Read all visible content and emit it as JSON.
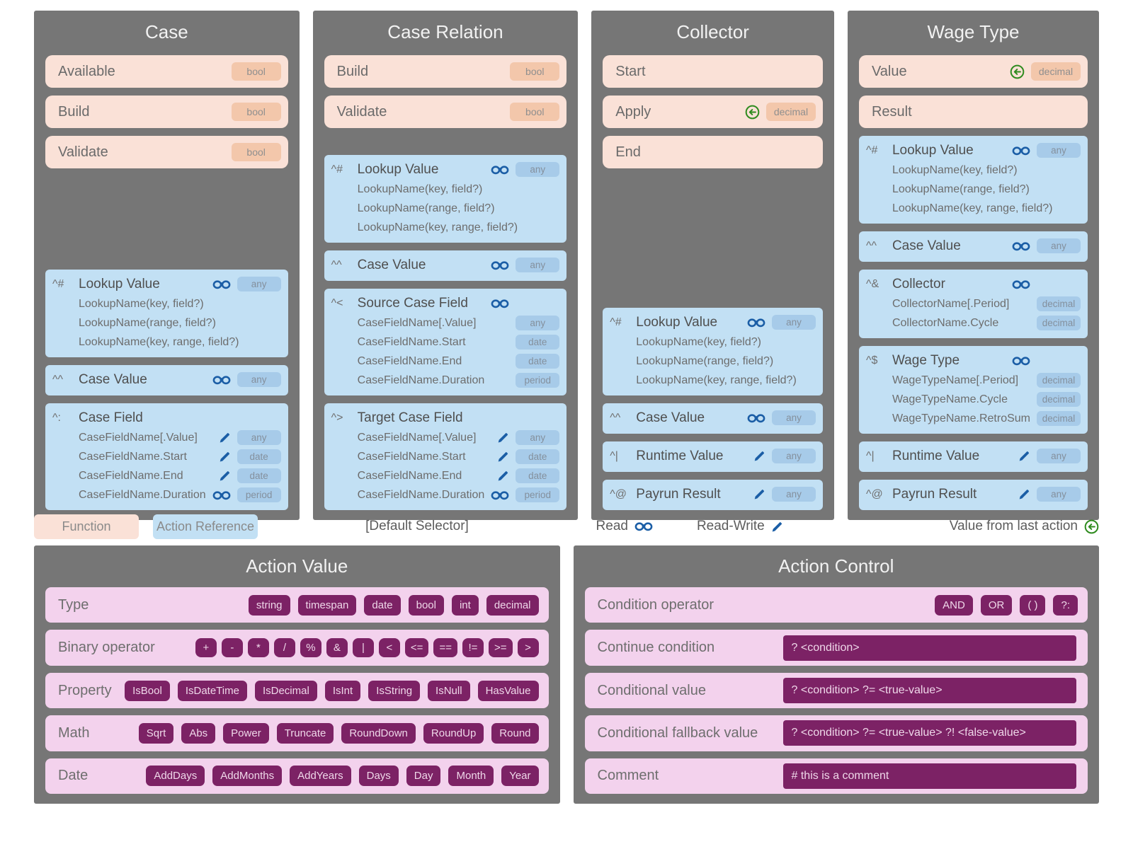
{
  "colors": {
    "panel_bg": "#767676",
    "function_bg": "#fae1d7",
    "function_badge_bg": "#f3c7ab",
    "action_ref_bg": "#c2e0f4",
    "action_ref_badge_bg": "#a7cbe9",
    "icon_blue": "#1b5ea6",
    "icon_green": "#2f8b1f",
    "value_row_bg": "#f3d2ed",
    "value_chip_bg": "#7c2265"
  },
  "panels": [
    {
      "title": "Case",
      "functions": [
        {
          "label": "Available",
          "badge": "bool"
        },
        {
          "label": "Build",
          "badge": "bool"
        },
        {
          "label": "Validate",
          "badge": "bool"
        }
      ],
      "spacer": true,
      "blocks": [
        {
          "prefix": "^#",
          "title": "Lookup Value",
          "icon": "read",
          "badge": "any",
          "lines": [
            {
              "text": "LookupName(key, field?)"
            },
            {
              "text": "LookupName(range, field?)"
            },
            {
              "text": "LookupName(key, range, field?)"
            }
          ]
        },
        {
          "prefix": "^^",
          "title": "Case Value",
          "icon": "read",
          "badge": "any",
          "lines": []
        },
        {
          "prefix": "^:",
          "title": "Case Field",
          "lines": [
            {
              "text": "CaseFieldName[.Value]",
              "icon": "write",
              "badge": "any"
            },
            {
              "text": "CaseFieldName.Start",
              "icon": "write",
              "badge": "date"
            },
            {
              "text": "CaseFieldName.End",
              "icon": "write",
              "badge": "date"
            },
            {
              "text": "CaseFieldName.Duration",
              "icon": "read",
              "badge": "period"
            }
          ]
        }
      ]
    },
    {
      "title": "Case Relation",
      "functions": [
        {
          "label": "Build",
          "badge": "bool"
        },
        {
          "label": "Validate",
          "badge": "bool"
        }
      ],
      "spacer": true,
      "blocks": [
        {
          "prefix": "^#",
          "title": "Lookup Value",
          "icon": "read",
          "badge": "any",
          "lines": [
            {
              "text": "LookupName(key, field?)"
            },
            {
              "text": "LookupName(range, field?)"
            },
            {
              "text": "LookupName(key, range, field?)"
            }
          ]
        },
        {
          "prefix": "^^",
          "title": "Case Value",
          "icon": "read",
          "badge": "any",
          "lines": []
        },
        {
          "prefix": "^<",
          "title": "Source Case Field",
          "icon": "read",
          "lines": [
            {
              "text": "CaseFieldName[.Value]",
              "badge": "any"
            },
            {
              "text": "CaseFieldName.Start",
              "badge": "date"
            },
            {
              "text": "CaseFieldName.End",
              "badge": "date"
            },
            {
              "text": "CaseFieldName.Duration",
              "badge": "period"
            }
          ]
        },
        {
          "prefix": "^>",
          "title": "Target Case Field",
          "lines": [
            {
              "text": "CaseFieldName[.Value]",
              "icon": "write",
              "badge": "any"
            },
            {
              "text": "CaseFieldName.Start",
              "icon": "write",
              "badge": "date"
            },
            {
              "text": "CaseFieldName.End",
              "icon": "write",
              "badge": "date"
            },
            {
              "text": "CaseFieldName.Duration",
              "icon": "read",
              "badge": "period"
            }
          ]
        }
      ]
    },
    {
      "title": "Collector",
      "functions": [
        {
          "label": "Start"
        },
        {
          "label": "Apply",
          "green_arrow": true,
          "badge": "decimal"
        },
        {
          "label": "End"
        }
      ],
      "spacer": true,
      "blocks": [
        {
          "prefix": "^#",
          "title": "Lookup Value",
          "icon": "read",
          "badge": "any",
          "lines": [
            {
              "text": "LookupName(key, field?)"
            },
            {
              "text": "LookupName(range, field?)"
            },
            {
              "text": "LookupName(key, range, field?)"
            }
          ]
        },
        {
          "prefix": "^^",
          "title": "Case Value",
          "icon": "read",
          "badge": "any",
          "lines": []
        },
        {
          "prefix": "^|",
          "title": "Runtime Value",
          "icon": "write",
          "badge": "any",
          "lines": []
        },
        {
          "prefix": "^@",
          "title": "Payrun Result",
          "icon": "write",
          "badge": "any",
          "lines": []
        }
      ]
    },
    {
      "title": "Wage Type",
      "functions": [
        {
          "label": "Value",
          "green_arrow": true,
          "badge": "decimal"
        },
        {
          "label": "Result"
        }
      ],
      "spacer": false,
      "blocks": [
        {
          "prefix": "^#",
          "title": "Lookup Value",
          "icon": "read",
          "badge": "any",
          "lines": [
            {
              "text": "LookupName(key, field?)"
            },
            {
              "text": "LookupName(range, field?)"
            },
            {
              "text": "LookupName(key, range, field?)"
            }
          ]
        },
        {
          "prefix": "^^",
          "title": "Case Value",
          "icon": "read",
          "badge": "any",
          "lines": []
        },
        {
          "prefix": "^&",
          "title": "Collector",
          "icon": "read",
          "lines": [
            {
              "text": "CollectorName[.Period]",
              "badge": "decimal"
            },
            {
              "text": "CollectorName.Cycle",
              "badge": "decimal"
            }
          ]
        },
        {
          "prefix": "^$",
          "title": "Wage Type",
          "icon": "read",
          "lines": [
            {
              "text": "WageTypeName[.Period]",
              "badge": "decimal"
            },
            {
              "text": "WageTypeName.Cycle",
              "badge": "decimal"
            },
            {
              "text": "WageTypeName.RetroSum",
              "badge": "decimal"
            }
          ]
        },
        {
          "prefix": "^|",
          "title": "Runtime Value",
          "icon": "write",
          "badge": "any",
          "lines": []
        },
        {
          "prefix": "^@",
          "title": "Payrun Result",
          "icon": "write",
          "badge": "any",
          "lines": []
        }
      ]
    }
  ],
  "legend": {
    "function_label": "Function",
    "action_reference_label": "Action Reference",
    "default_selector_label": "[Default Selector]",
    "read_label": "Read",
    "read_write_label": "Read-Write",
    "last_action_label": "Value from last action"
  },
  "action_value": {
    "title": "Action Value",
    "rows": [
      {
        "label": "Type",
        "chips": [
          "string",
          "timespan",
          "date",
          "bool",
          "int",
          "decimal"
        ]
      },
      {
        "label": "Binary operator",
        "small": true,
        "chips": [
          "+",
          "-",
          "*",
          "/",
          "%",
          "&",
          "|",
          "<",
          "<=",
          "==",
          "!=",
          ">=",
          ">"
        ]
      },
      {
        "label": "Property",
        "chips": [
          "IsBool",
          "IsDateTime",
          "IsDecimal",
          "IsInt",
          "IsString",
          "IsNull",
          "HasValue"
        ]
      },
      {
        "label": "Math",
        "chips": [
          "Sqrt",
          "Abs",
          "Power",
          "Truncate",
          "RoundDown",
          "RoundUp",
          "Round"
        ]
      },
      {
        "label": "Date",
        "chips": [
          "AddDays",
          "AddMonths",
          "AddYears",
          "Days",
          "Day",
          "Month",
          "Year"
        ]
      }
    ]
  },
  "action_control": {
    "title": "Action Control",
    "rows": [
      {
        "label": "Condition operator",
        "chips": [
          "AND",
          "OR",
          "( )",
          "?:"
        ]
      },
      {
        "label": "Continue condition",
        "bar": "? <condition>"
      },
      {
        "label": "Conditional value",
        "bar": "? <condition> ?= <true-value>"
      },
      {
        "label": "Conditional fallback value",
        "bar": "? <condition> ?= <true-value> ?! <false-value>"
      },
      {
        "label": "Comment",
        "bar": "# this is a comment"
      }
    ]
  }
}
